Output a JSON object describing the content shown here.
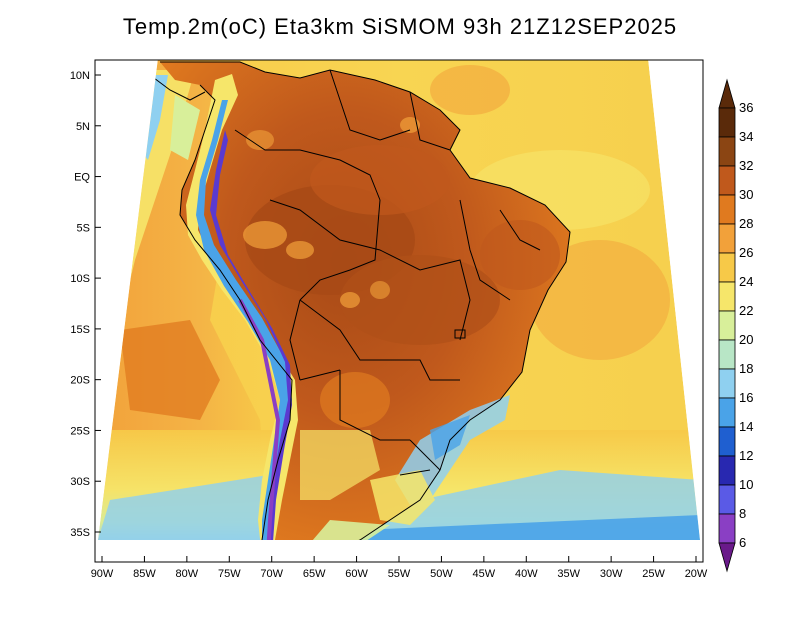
{
  "title": "Temp.2m(oC) Eta3km SiSMOM 93h 21Z12SEP2025",
  "map": {
    "lat_labels": [
      "10N",
      "5N",
      "EQ",
      "5S",
      "10S",
      "15S",
      "20S",
      "25S",
      "30S",
      "35S"
    ],
    "lat_values": [
      10,
      5,
      0,
      -5,
      -10,
      -15,
      -20,
      -25,
      -30,
      -35
    ],
    "lon_labels": [
      "90W",
      "85W",
      "80W",
      "75W",
      "70W",
      "65W",
      "60W",
      "55W",
      "50W",
      "45W",
      "40W",
      "35W",
      "30W",
      "25W",
      "20W"
    ],
    "lon_values": [
      -90,
      -85,
      -80,
      -75,
      -70,
      -65,
      -60,
      -55,
      -50,
      -45,
      -40,
      -35,
      -30,
      -25,
      -20
    ]
  },
  "colorbar": {
    "labels": [
      "36",
      "34",
      "32",
      "30",
      "28",
      "26",
      "24",
      "22",
      "20",
      "18",
      "16",
      "14",
      "12",
      "10",
      "8",
      "6"
    ],
    "colors": [
      "#5a2a0a",
      "#8b4513",
      "#c0591c",
      "#e07a1f",
      "#f2a13a",
      "#f7c948",
      "#f6e66a",
      "#d8ef9a",
      "#b8e6c6",
      "#8fd0f0",
      "#4aa3e8",
      "#1f5fd0",
      "#2828b0",
      "#5a5ae6",
      "#8a3fc4",
      "#6a1a8a"
    ]
  },
  "palette": {
    "ocean_warm": "#f6c23e",
    "ocean_mid": "#f8d85a",
    "ocean_cool": "#d8ef9a",
    "land_hot": "#c8601e",
    "land_warm": "#e0882a",
    "andes_cold": "#6a3ad0",
    "border": "#000000"
  }
}
